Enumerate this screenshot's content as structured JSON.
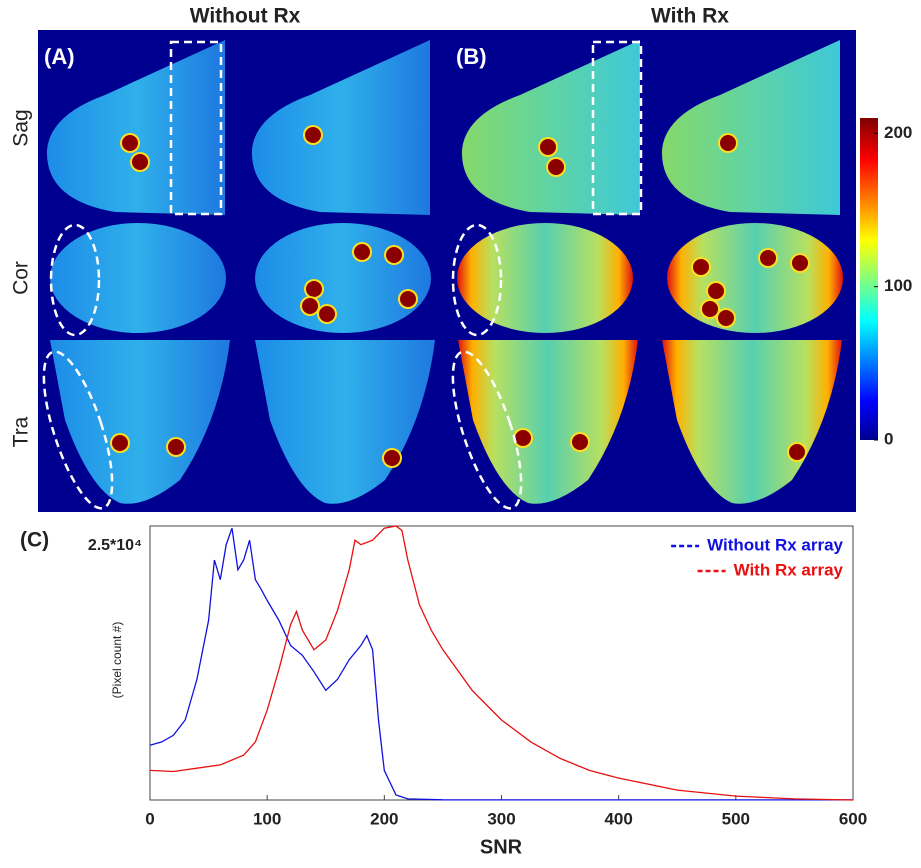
{
  "figure": {
    "panel_a": "(A)",
    "panel_b": "(B)",
    "column_titles": [
      "Without Rx",
      "With Rx"
    ],
    "row_labels": [
      "Sag",
      "Cor",
      "Tra"
    ],
    "colorbar": {
      "lim": [
        0,
        210
      ],
      "ticks": [
        0,
        100,
        200
      ]
    }
  },
  "chart_data": {
    "type": "line",
    "title": "(C)",
    "x_label": "SNR",
    "y_label": "(Pixel count #)",
    "xlim": [
      0,
      600
    ],
    "xticks": [
      0,
      100,
      200,
      300,
      400,
      500,
      600
    ],
    "ylim": [
      0,
      25000
    ],
    "yticks": [
      {
        "value": 25000,
        "label": "2.5*10⁴"
      }
    ],
    "legend": "upper right",
    "series": [
      {
        "name": "Without Rx array",
        "color": "#1010e0",
        "x": [
          0,
          10,
          20,
          30,
          40,
          50,
          55,
          60,
          65,
          70,
          75,
          80,
          85,
          90,
          95,
          100,
          110,
          120,
          130,
          140,
          150,
          160,
          170,
          180,
          185,
          190,
          195,
          200,
          210,
          220,
          250,
          300,
          400,
          500,
          600
        ],
        "values": [
          5000,
          5300,
          5900,
          7300,
          11000,
          16400,
          21900,
          20100,
          23300,
          24800,
          21000,
          21900,
          23700,
          20100,
          19200,
          18200,
          16400,
          14100,
          13200,
          11700,
          10000,
          11000,
          12800,
          14100,
          15000,
          13700,
          7300,
          2700,
          460,
          100,
          20,
          10,
          10,
          10,
          10
        ]
      },
      {
        "name": "With Rx array",
        "color": "#e81010",
        "x": [
          0,
          20,
          40,
          60,
          80,
          90,
          100,
          110,
          120,
          125,
          130,
          140,
          150,
          160,
          170,
          175,
          180,
          190,
          200,
          210,
          215,
          220,
          230,
          240,
          250,
          275,
          300,
          325,
          350,
          375,
          400,
          450,
          500,
          550,
          600
        ],
        "values": [
          2700,
          2600,
          2900,
          3200,
          4100,
          5300,
          8200,
          11900,
          16000,
          17200,
          15500,
          13700,
          14600,
          17300,
          21000,
          23700,
          23300,
          23700,
          24800,
          25000,
          24600,
          21900,
          17800,
          15500,
          13700,
          10000,
          7300,
          5300,
          3800,
          2700,
          2000,
          900,
          360,
          100,
          0
        ]
      }
    ]
  }
}
